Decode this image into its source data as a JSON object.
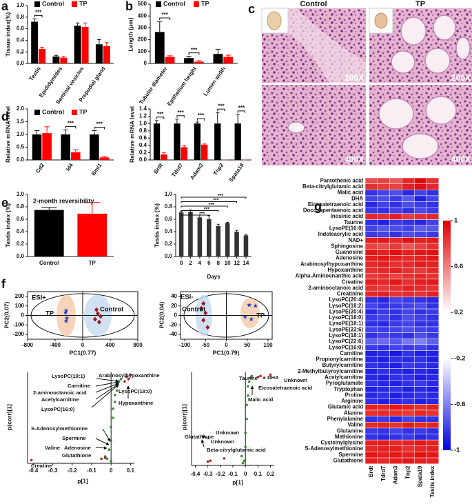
{
  "figure_c": {
    "panel_label": "c",
    "columns": [
      "Control",
      "TP"
    ],
    "magnifications": [
      "200X",
      "200X",
      "400X",
      "400X"
    ]
  },
  "chart_data": [
    {
      "type": "bar",
      "panel_label": "a",
      "ylabel": "Tissue index(%)",
      "categories": [
        "Testis",
        "Epididymides",
        "Seminal vesicles",
        "Prepudial gland"
      ],
      "series": [
        {
          "name": "Control",
          "color": "#000000",
          "values": [
            0.72,
            0.12,
            0.65,
            0.33
          ],
          "errors": [
            0.05,
            0.02,
            0.05,
            0.08
          ]
        },
        {
          "name": "TP",
          "color": "#ff0000",
          "values": [
            0.25,
            0.1,
            0.63,
            0.3
          ],
          "errors": [
            0.03,
            0.02,
            0.07,
            0.06
          ]
        }
      ],
      "ylim": [
        0,
        1
      ],
      "yticks": [
        {
          "value": 0,
          "label": "0.0"
        },
        0.2,
        0.4,
        0.6,
        0.8,
        {
          "value": 1,
          "label": "1.0"
        }
      ],
      "annotations": [
        "***"
      ]
    },
    {
      "type": "bar",
      "panel_label": "b",
      "ylabel": "Length (μm)",
      "categories": [
        "Tubular diameter",
        "Epithelium height",
        "Lumen width"
      ],
      "series": [
        {
          "name": "Control",
          "color": "#000000",
          "values": [
            265,
            45,
            80
          ],
          "errors": [
            90,
            15,
            40
          ]
        },
        {
          "name": "TP",
          "color": "#ff0000",
          "values": [
            55,
            15,
            55
          ],
          "errors": [
            10,
            8,
            15
          ]
        }
      ],
      "ylim": [
        0,
        500
      ],
      "yticks": [
        0,
        100,
        200,
        300,
        400,
        500
      ],
      "annotations": [
        "***",
        "***"
      ]
    },
    {
      "type": "bar",
      "panel_label": "d",
      "ylabel": "Relative mRNA level",
      "categories": [
        "Cd2",
        "Id4",
        "Bmi1"
      ],
      "series": [
        {
          "name": "Control",
          "color": "#000000",
          "values": [
            1.0,
            1.0,
            1.0
          ],
          "errors": [
            0.15,
            0.18,
            0.15
          ]
        },
        {
          "name": "TP",
          "color": "#ff0000",
          "values": [
            1.05,
            0.3,
            0.1
          ],
          "errors": [
            0.25,
            0.1,
            0.03
          ]
        }
      ],
      "ylim": [
        0,
        2
      ],
      "yticks": [
        {
          "value": 0,
          "label": "0.0"
        },
        0.5,
        {
          "value": 1,
          "label": "1.0"
        },
        1.5,
        {
          "value": 2,
          "label": "2.0"
        }
      ],
      "annotations": [
        "***",
        "***"
      ]
    },
    {
      "type": "bar",
      "ylabel": "Relative mRNA level",
      "categories": [
        "Brdt",
        "Tdrd7",
        "Adam3",
        "Tnp2",
        "Spata19"
      ],
      "series": [
        {
          "color": "#000000",
          "values": [
            1.0,
            1.0,
            1.0,
            1.0,
            1.0
          ],
          "errors": [
            0.08,
            0.12,
            0.04,
            0.3,
            0.25
          ]
        },
        {
          "color": "#ff0000",
          "values": [
            0.15,
            0.35,
            0.42,
            0,
            0
          ],
          "errors": [
            0.05,
            0.05,
            0.02,
            0,
            0
          ]
        }
      ],
      "ylim": [
        0,
        1.4
      ],
      "yticks": [
        {
          "value": 0,
          "label": "0.0"
        },
        0.2,
        0.4,
        0.6,
        0.8,
        {
          "value": 1,
          "label": "1.0"
        },
        1.2,
        1.4
      ],
      "annotations": [
        "***",
        "***",
        "***",
        "***",
        "***"
      ]
    },
    {
      "type": "bar",
      "panel_label": "e",
      "title": "2-month reversibility",
      "ylabel": "Testis index (%)",
      "categories": [
        "Control",
        "TP"
      ],
      "values": [
        0.75,
        0.69
      ],
      "errors": [
        0.04,
        0.18
      ],
      "colors": [
        "#000000",
        "#ff0000"
      ],
      "ylim": [
        0,
        1
      ],
      "yticks": [
        {
          "value": 0,
          "label": "0.0"
        },
        0.2,
        0.4,
        0.6,
        0.8,
        {
          "value": 1,
          "label": "1.0"
        }
      ]
    },
    {
      "type": "bar",
      "ylabel": "Testis index (%)",
      "xlabel": "Days",
      "x": [
        0,
        2,
        4,
        6,
        8,
        10,
        12,
        14
      ],
      "values": [
        0.71,
        0.72,
        0.63,
        0.6,
        0.49,
        0.54,
        0.4,
        0.34
      ],
      "errors": [
        0.02,
        0.03,
        0.04,
        0.06,
        0.03,
        0.01,
        0.02,
        0.01
      ],
      "color": "#333333",
      "xlim": [
        -1.2,
        15.2
      ],
      "xticks": [
        0,
        2,
        4,
        6,
        8,
        10,
        12,
        14
      ],
      "ylim": [
        0,
        1
      ],
      "yticks": [
        {
          "value": 0,
          "label": "0.0"
        },
        0.2,
        0.4,
        0.6,
        0.8,
        {
          "value": 1,
          "label": "1.0"
        }
      ],
      "annotations": [
        "***",
        "***",
        "***",
        "***",
        "***"
      ]
    },
    {
      "type": "scatter",
      "panel_label": "f",
      "label": "ESI+",
      "xlabel": "PC1(0.77)",
      "ylabel": "PC2(0.07)",
      "xlim": [
        -800,
        800
      ],
      "xticks": [
        -800,
        -400,
        0,
        400,
        800
      ],
      "ylim": [
        -250,
        250
      ],
      "yticks": [
        -200,
        -100,
        0,
        100,
        200
      ],
      "series": [
        {
          "name": "TP",
          "color": "#1f3fbf",
          "marker": "star",
          "x": [
            -240,
            -250,
            -230,
            -240
          ],
          "values": [
            50,
            30,
            -30,
            -60
          ]
        },
        {
          "name": "Control",
          "color": "#a01818",
          "marker": "diamond",
          "x": [
            200,
            220,
            260,
            180,
            240
          ],
          "values": [
            60,
            20,
            -10,
            -40,
            -70
          ]
        }
      ]
    },
    {
      "type": "scatter",
      "label": "ESI-",
      "xlabel": "PC1(0.79)",
      "ylabel": "PC2(0.04)",
      "xlim": [
        -110,
        110
      ],
      "xticks": [
        -100,
        -50,
        0,
        50,
        100
      ],
      "ylim": [
        -50,
        50
      ],
      "yticks": [
        -40,
        -20,
        0,
        20,
        40
      ],
      "series": [
        {
          "name": "Control",
          "color": "#a01818",
          "marker": "diamond",
          "x": [
            -55,
            -60,
            -50,
            -55,
            -45
          ],
          "values": [
            25,
            15,
            5,
            -10,
            -25
          ]
        },
        {
          "name": "TP",
          "color": "#1f3fbf",
          "marker": "star",
          "x": [
            55,
            70,
            45,
            60
          ],
          "values": [
            22,
            20,
            -3,
            -8
          ]
        }
      ]
    },
    {
      "type": "scatter",
      "xlabel": "p[1]",
      "ylabel": "p(corr)[1]",
      "xlim": [
        -0.43,
        0.12
      ],
      "xticks": [
        -0.4,
        -0.3,
        -0.2,
        -0.1,
        0,
        0.1
      ],
      "ylim": [
        -1,
        1
      ],
      "series": [
        {
          "color": "#2e8b2e",
          "x": [
            -0.02,
            -0.01,
            0,
            0,
            0.01,
            0.01,
            0.02,
            0.02,
            0.03,
            0.03,
            0.04,
            0.05,
            -0.03,
            0.0
          ],
          "values": [
            -0.9,
            -0.7,
            -0.5,
            -0.2,
            0,
            0.2,
            0.35,
            0.5,
            0.6,
            0.7,
            0.8,
            0.85,
            -0.85,
            -0.95
          ]
        },
        {
          "color": "#b22222",
          "x": [
            0.07,
            0.08,
            0.09,
            0.1,
            -0.41,
            -0.05,
            -0.03
          ],
          "values": [
            0.8,
            0.9,
            0.85,
            0.95,
            -0.93,
            -0.9,
            -0.88
          ]
        }
      ],
      "annotations": [
        "LysoPC(18:1)",
        "Arabinosylhypoxanthine",
        "Carnitine",
        "2-aminooctanoic acid",
        "Acetylcarnitine",
        "LysoPC(18:0)",
        "LysoPC(16:0)",
        "Hypoxanthine",
        "S-Adenosylmethionine",
        "Spermine",
        "Valine",
        "Adenosine",
        "Glutathione",
        "Creatine"
      ]
    },
    {
      "type": "scatter",
      "xlabel": "p[1]",
      "ylabel": "p(corr)[1]",
      "xlim": [
        -0.43,
        0.23
      ],
      "xticks": [
        -0.4,
        -0.3,
        -0.2,
        -0.1,
        0,
        0.1,
        0.2
      ],
      "ylim": [
        -1,
        1
      ],
      "series": [
        {
          "color": "#2e8b2e",
          "x": [
            -0.01,
            0,
            0,
            0.01,
            0.01,
            0.02,
            0.02,
            0.03,
            0.04,
            0.05,
            -0.02,
            -0.03
          ],
          "values": [
            -0.9,
            -0.6,
            -0.3,
            0,
            0.3,
            0.5,
            0.7,
            0.8,
            0.88,
            0.92,
            -0.95,
            -0.8
          ]
        },
        {
          "color": "#b22222",
          "x": [
            0.1,
            0.12,
            0.15,
            0.2,
            -0.3,
            -0.28,
            -0.17
          ],
          "values": [
            0.9,
            0.92,
            0.88,
            0.95,
            -0.92,
            -0.9,
            -0.85
          ]
        }
      ],
      "annotations": [
        "Taurine",
        "DHA",
        "Unknown",
        "Eicosatetraenoic acid",
        "Malic acid",
        "Unknown",
        "Glutathione",
        "Unknown",
        "Beta-citrylglutamic acid"
      ]
    },
    {
      "type": "heatmap",
      "panel_label": "g",
      "columns": [
        "Brdt",
        "Tdrd7",
        "Adam3",
        "Tnp2",
        "Spata19",
        "Testis index"
      ],
      "rows": [
        "Pantothenic acid",
        "Beta-citrylglutamic acid",
        "Malic acid",
        "DHA",
        "Eicosatetraenoic acid",
        "Docosapentaenoic acid",
        "Inosinic acid",
        "Taurine",
        "LysoPE(16:0)",
        "Indoleacrylic acid",
        "NAD+",
        "Sphingosine",
        "Guanosine",
        "Adenosine",
        "Arabinosylhypoxanthine",
        "Hypoxanthine",
        "Alpha-Aminoenanthic acid",
        "Creatine",
        "2-aminooctanoic acid",
        "Creatinine",
        "LysoPC(20:4)",
        "LysoPC(18:2)",
        "LysoPE(20:4)",
        "LysoPC(18:0)",
        "LysoPE(18:1)",
        "LysoPE(22:6)",
        "LysoPC(18:1)",
        "LysoPC(22:6)",
        "LysoPC(16:0)",
        "Carnitine",
        "Propionylcarnitine",
        "Butyrylcarnitine",
        "2-Methylbutyroylcarnitine",
        "Acetylcarnitine",
        "Pyroglutamate",
        "Tryptophan",
        "Proline",
        "Arginine",
        "Glutamic acid",
        "Alanine",
        "Phenylalanine",
        "Valine",
        "Glutamine",
        "Methionine",
        "Cysteinylglycine",
        "S-Adenosylmethionine",
        "Spermine",
        "Glutathione"
      ],
      "values": [
        [
          0.55,
          0.6,
          0.5,
          0.75,
          0.95,
          0.7
        ],
        [
          0.7,
          0.65,
          0.6,
          0.8,
          0.9,
          0.75
        ],
        [
          -0.7,
          -0.6,
          -0.55,
          -0.75,
          -0.6,
          -0.7
        ],
        [
          -0.6,
          -0.55,
          -0.65,
          -0.5,
          -0.8,
          -0.6
        ],
        [
          -0.75,
          -0.6,
          -0.7,
          -0.55,
          -0.65,
          -0.7
        ],
        [
          -0.65,
          -0.7,
          -0.6,
          -0.7,
          -0.55,
          -0.65
        ],
        [
          0.75,
          0.7,
          0.8,
          0.65,
          0.7,
          0.75
        ],
        [
          -0.7,
          -0.8,
          -0.65,
          -0.7,
          -0.75,
          -0.6
        ],
        [
          -0.6,
          -0.5,
          -0.55,
          -0.6,
          -0.45,
          -0.5
        ],
        [
          -0.65,
          -0.6,
          -0.7,
          -0.55,
          -0.6,
          -0.65
        ],
        [
          0.8,
          0.85,
          0.75,
          0.9,
          0.8,
          0.85
        ],
        [
          0.6,
          0.55,
          0.65,
          0.5,
          0.6,
          0.7
        ],
        [
          0.85,
          0.8,
          0.9,
          0.8,
          0.85,
          0.9
        ],
        [
          0.8,
          0.85,
          0.8,
          0.75,
          0.8,
          0.85
        ],
        [
          0.75,
          0.8,
          0.7,
          0.75,
          0.85,
          0.8
        ],
        [
          0.7,
          0.75,
          0.8,
          0.7,
          0.65,
          0.75
        ],
        [
          0.65,
          0.7,
          0.6,
          0.7,
          0.75,
          0.7
        ],
        [
          0.8,
          0.75,
          0.85,
          0.7,
          0.8,
          0.85
        ],
        [
          0.7,
          0.65,
          0.7,
          0.8,
          0.75,
          0.7
        ],
        [
          0.75,
          0.8,
          0.7,
          0.75,
          0.7,
          0.8
        ],
        [
          -0.7,
          -0.75,
          -0.6,
          -0.65,
          -0.7,
          -0.75
        ],
        [
          -0.6,
          -0.7,
          -0.65,
          -0.6,
          -0.55,
          -0.7
        ],
        [
          -0.75,
          -0.65,
          -0.7,
          -0.6,
          -0.7,
          -0.65
        ],
        [
          -0.65,
          -0.6,
          -0.7,
          -0.55,
          -0.6,
          -0.7
        ],
        [
          -0.7,
          -0.75,
          -0.65,
          -0.6,
          -0.7,
          -0.7
        ],
        [
          -0.6,
          -0.65,
          -0.6,
          -0.55,
          -0.6,
          -0.65
        ],
        [
          -0.7,
          -0.6,
          -0.65,
          -0.7,
          -0.55,
          -0.65
        ],
        [
          -0.45,
          -0.4,
          -0.5,
          -0.35,
          -0.3,
          -0.45
        ],
        [
          -0.65,
          -0.7,
          -0.6,
          -0.65,
          -0.6,
          -0.7
        ],
        [
          -0.8,
          -0.75,
          -0.85,
          -0.7,
          -0.8,
          -0.8
        ],
        [
          -0.75,
          -0.8,
          -0.7,
          -0.75,
          -0.7,
          -0.8
        ],
        [
          -0.7,
          -0.75,
          -0.8,
          -0.65,
          -0.7,
          -0.75
        ],
        [
          -0.8,
          -0.7,
          -0.75,
          -0.8,
          -0.75,
          -0.8
        ],
        [
          -0.75,
          -0.8,
          -0.7,
          -0.7,
          -0.8,
          -0.75
        ],
        [
          -0.7,
          -0.75,
          -0.8,
          -0.7,
          -0.65,
          -0.75
        ],
        [
          -0.8,
          -0.75,
          -0.7,
          -0.8,
          -0.75,
          -0.8
        ],
        [
          -0.75,
          -0.7,
          -0.8,
          -0.75,
          -0.7,
          -0.75
        ],
        [
          -0.7,
          -0.8,
          -0.75,
          -0.7,
          -0.8,
          -0.75
        ],
        [
          0.8,
          0.75,
          0.85,
          0.8,
          0.7,
          0.8
        ],
        [
          0.7,
          0.75,
          0.7,
          0.65,
          0.75,
          0.7
        ],
        [
          -0.7,
          -0.65,
          -0.75,
          -0.6,
          -0.7,
          -0.7
        ],
        [
          0.75,
          0.8,
          0.7,
          0.85,
          0.75,
          0.8
        ],
        [
          -0.65,
          -0.7,
          -0.6,
          -0.7,
          -0.65,
          -0.7
        ],
        [
          -0.7,
          -0.75,
          -0.7,
          -0.65,
          -0.75,
          -0.7
        ],
        [
          0.8,
          0.85,
          0.75,
          0.8,
          0.85,
          0.8
        ],
        [
          0.75,
          0.8,
          0.8,
          0.7,
          0.75,
          0.8
        ],
        [
          0.85,
          0.8,
          0.85,
          0.8,
          0.9,
          0.85
        ],
        [
          0.8,
          0.75,
          0.8,
          0.85,
          0.8,
          0.8
        ]
      ],
      "clim": [
        -1,
        1
      ],
      "colorbar_ticks": [
        1,
        0.6,
        0.2,
        -0.2,
        -0.6,
        -1
      ]
    }
  ]
}
